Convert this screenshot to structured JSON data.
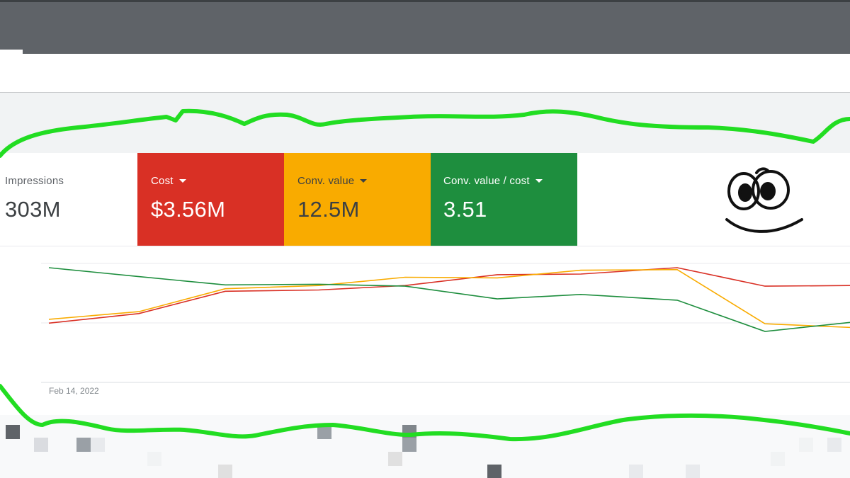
{
  "metrics": {
    "impressions": {
      "label": "Impressions",
      "value": "303M"
    },
    "cost": {
      "label": "Cost",
      "value": "$3.56M",
      "color": "#d93025"
    },
    "conv_value": {
      "label": "Conv. value",
      "value": "12.5M",
      "color": "#f9ab00"
    },
    "conv_value_cost": {
      "label": "Conv. value / cost",
      "value": "3.51",
      "color": "#1e8e3e"
    }
  },
  "chart_data": {
    "type": "line",
    "x_tick_label": "Feb 14, 2022",
    "series": [
      {
        "name": "Cost",
        "color": "#d93025",
        "values": [
          0.13,
          0.28,
          0.63,
          0.65,
          0.72,
          0.89,
          0.9,
          1.0,
          0.71
        ]
      },
      {
        "name": "Conv. value",
        "color": "#f9ab00",
        "values": [
          0.19,
          0.31,
          0.67,
          0.72,
          0.85,
          0.84,
          0.96,
          0.97,
          0.12
        ]
      },
      {
        "name": "Conv. value / cost",
        "color": "#1e8e3e",
        "values": [
          1.0,
          0.86,
          0.73,
          0.74,
          0.71,
          0.51,
          0.58,
          0.49,
          0.0
        ]
      }
    ]
  },
  "colors": {
    "top_bar": "#5f6368",
    "highlight_doodle": "#22dd22"
  },
  "icons": {
    "metric_caret": "caret-down-icon",
    "doodle": "smiley-face-doodle"
  }
}
